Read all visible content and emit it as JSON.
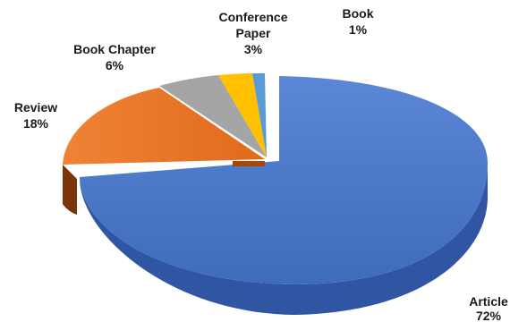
{
  "chart_data": {
    "type": "pie",
    "style": "3d-exploded",
    "slices": [
      {
        "name": "Article",
        "percent_label": "72%",
        "value": 72,
        "color": "#4472c4"
      },
      {
        "name": "Review",
        "percent_label": "18%",
        "value": 18,
        "color": "#ed7d31"
      },
      {
        "name": "Book Chapter",
        "percent_label": "6%",
        "value": 6,
        "color": "#a5a5a5"
      },
      {
        "name": "Conference Paper",
        "percent_label": "3%",
        "value": 3,
        "color": "#ffc000"
      },
      {
        "name": "Book",
        "percent_label": "1%",
        "value": 1,
        "color": "#5b9bd5"
      }
    ]
  }
}
